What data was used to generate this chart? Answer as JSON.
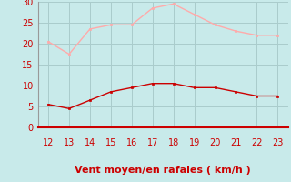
{
  "hours": [
    12,
    13,
    14,
    15,
    16,
    17,
    18,
    19,
    20,
    21,
    22,
    23
  ],
  "wind_avg": [
    5.5,
    4.5,
    6.5,
    8.5,
    9.5,
    10.5,
    10.5,
    9.5,
    9.5,
    8.5,
    7.5,
    7.5
  ],
  "wind_gust": [
    20.5,
    17.5,
    23.5,
    24.5,
    24.5,
    28.5,
    29.5,
    27.0,
    24.5,
    23.0,
    22.0,
    22.0
  ],
  "avg_color": "#cc0000",
  "gust_color": "#ffaaaa",
  "bg_color": "#c8eaea",
  "grid_color": "#aacccc",
  "axis_color": "#cc0000",
  "xlabel": "Vent moyen/en rafales ( km/h )",
  "ylim": [
    0,
    30
  ],
  "yticks": [
    0,
    5,
    10,
    15,
    20,
    25,
    30
  ],
  "tick_fontsize": 7,
  "xlabel_fontsize": 8
}
